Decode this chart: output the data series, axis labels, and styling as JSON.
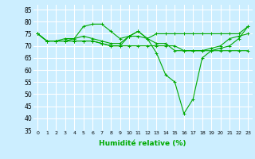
{
  "xlabel": "Humidité relative (%)",
  "background_color": "#cceeff",
  "grid_color": "#ffffff",
  "line_color": "#00aa00",
  "ylim": [
    35,
    87
  ],
  "xlim": [
    -0.5,
    23.5
  ],
  "yticks": [
    35,
    40,
    45,
    50,
    55,
    60,
    65,
    70,
    75,
    80,
    85
  ],
  "xticks": [
    0,
    1,
    2,
    3,
    4,
    5,
    6,
    7,
    8,
    9,
    10,
    11,
    12,
    13,
    14,
    15,
    16,
    17,
    18,
    19,
    20,
    21,
    22,
    23
  ],
  "series": [
    [
      75,
      72,
      72,
      73,
      73,
      78,
      79,
      79,
      76,
      73,
      74,
      76,
      73,
      75,
      75,
      75,
      75,
      75,
      75,
      75,
      75,
      75,
      75,
      78
    ],
    [
      75,
      72,
      72,
      72,
      73,
      74,
      73,
      72,
      71,
      71,
      74,
      74,
      73,
      71,
      71,
      68,
      68,
      68,
      68,
      69,
      70,
      73,
      74,
      75
    ],
    [
      75,
      72,
      72,
      72,
      72,
      72,
      72,
      71,
      70,
      70,
      70,
      70,
      70,
      70,
      70,
      70,
      68,
      68,
      68,
      68,
      68,
      68,
      68,
      68
    ],
    [
      75,
      72,
      72,
      72,
      72,
      72,
      72,
      71,
      70,
      70,
      74,
      76,
      73,
      67,
      58,
      55,
      42,
      48,
      65,
      68,
      69,
      70,
      73,
      78
    ]
  ]
}
